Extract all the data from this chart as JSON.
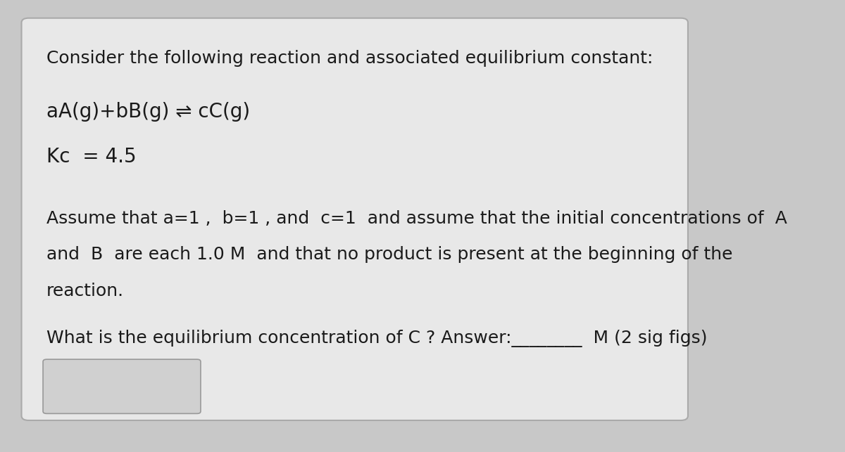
{
  "bg_color": "#c8c8c8",
  "card_color": "#e8e8e8",
  "card_border_color": "#aaaaaa",
  "text_color": "#1a1a1a",
  "line1": "Consider the following reaction and associated equilibrium constant:",
  "line2": "aA(g)+bB(g) ⇌ cC(g)",
  "line3": "Kc  = 4.5",
  "line4": "Assume that a=1 ,  b=1 , and  c=1  and assume that the initial concentrations of  A",
  "line5": "and  B  are each 1.0 M  and that no product is present at the beginning of the",
  "line6": "reaction.",
  "line7": "What is the equilibrium concentration of C ? Answer:________  M (2 sig figs)",
  "font_size_main": 18,
  "font_size_equation": 20,
  "font_size_kc": 20
}
